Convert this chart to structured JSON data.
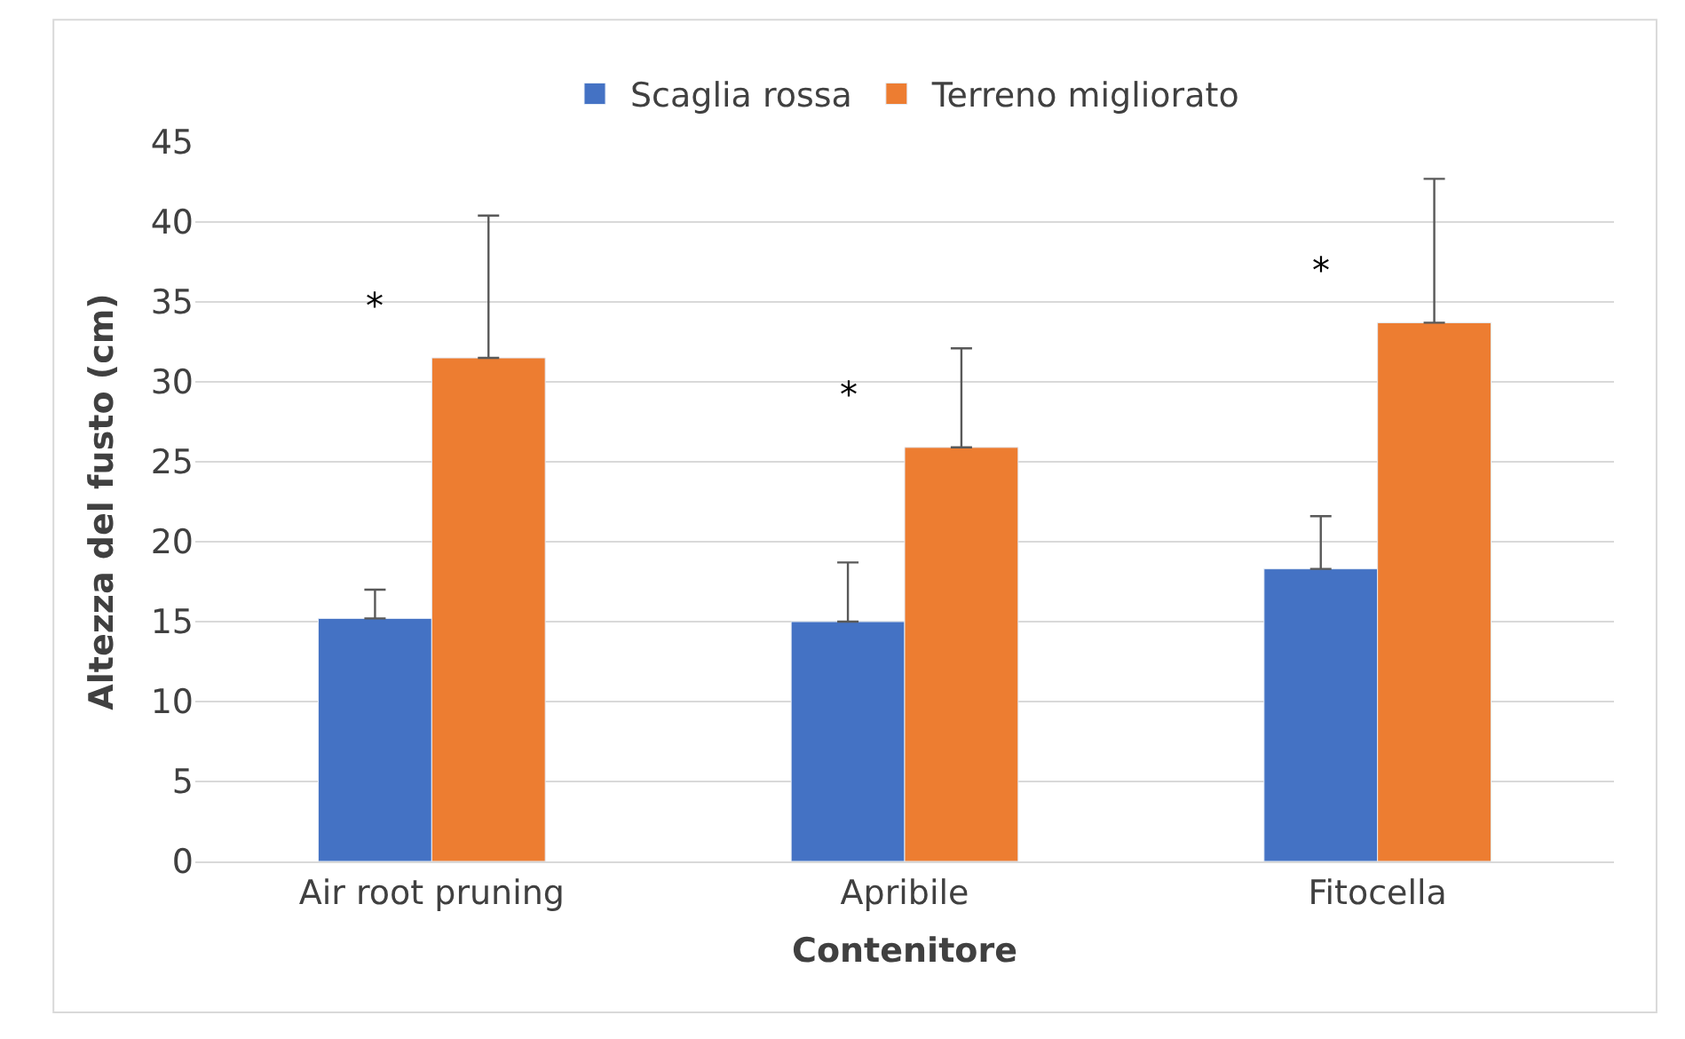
{
  "chart_data": {
    "type": "bar",
    "xlabel": "Contenitore",
    "ylabel": "Altezza del fusto (cm)",
    "categories": [
      "Air root pruning",
      "Apribile",
      "Fitocella"
    ],
    "series": [
      {
        "name": "Scaglia rossa",
        "color": "#4472c4",
        "values": [
          15.2,
          15.0,
          18.3
        ],
        "errors": [
          [
            15.2,
            17.0
          ],
          [
            15.0,
            18.7
          ],
          [
            18.3,
            21.6
          ]
        ]
      },
      {
        "name": "Terreno migliorato",
        "color": "#ed7d31",
        "values": [
          31.5,
          25.9,
          33.7
        ],
        "errors": [
          [
            31.5,
            40.4
          ],
          [
            25.9,
            32.1
          ],
          [
            33.7,
            42.7
          ]
        ]
      }
    ],
    "annotations": [
      "*",
      "*",
      "*"
    ],
    "ylim": [
      0,
      45
    ],
    "yticks": [
      0,
      5,
      10,
      15,
      20,
      25,
      30,
      35,
      40,
      45
    ],
    "grid": "y",
    "legend": "top"
  }
}
